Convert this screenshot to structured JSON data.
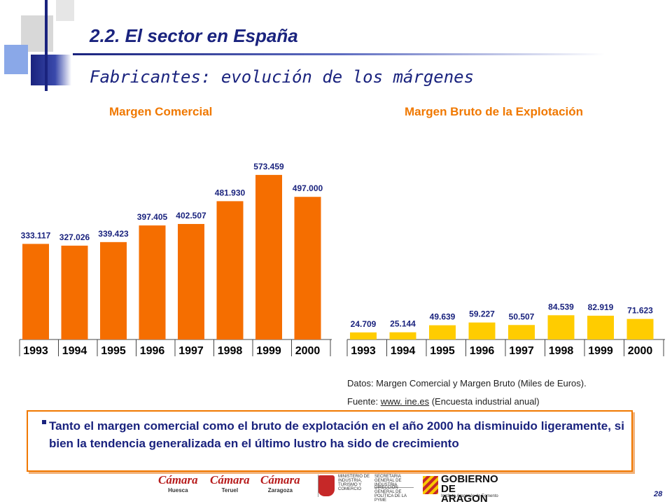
{
  "header": {
    "title": "2.2. El sector en España",
    "subtitle": "Fabricantes: evolución de los márgenes"
  },
  "chart_data": [
    {
      "type": "bar",
      "title": "Margen Comercial",
      "categories": [
        "1993",
        "1994",
        "1995",
        "1996",
        "1997",
        "1998",
        "1999",
        "2000"
      ],
      "values": [
        333117,
        327026,
        339423,
        397405,
        402507,
        481930,
        573459,
        497000
      ],
      "value_labels": [
        "333.117",
        "327.026",
        "339.423",
        "397.405",
        "402.507",
        "481.930",
        "573.459",
        "497.000"
      ],
      "ylim": [
        0,
        600000
      ],
      "bar_color": "#f56e00",
      "label_color": "#1a237e",
      "grid": false
    },
    {
      "type": "bar",
      "title": "Margen Bruto de la Explotación",
      "categories": [
        "1993",
        "1994",
        "1995",
        "1996",
        "1997",
        "1998",
        "1999",
        "2000"
      ],
      "values": [
        24709,
        25144,
        49639,
        59227,
        50507,
        84539,
        82919,
        71623
      ],
      "value_labels": [
        "24.709",
        "25.144",
        "49.639",
        "59.227",
        "50.507",
        "84.539",
        "82.919",
        "71.623"
      ],
      "ylim": [
        0,
        600000
      ],
      "bar_color": "#ffcc00",
      "label_color": "#1a237e",
      "grid": false
    }
  ],
  "notes": {
    "datos": "Datos: Margen Comercial y Margen Bruto (Miles de Euros).",
    "fuente_prefix": "Fuente:",
    "fuente_link": "www. ine.es",
    "fuente_suffix": "(Encuesta industrial anual)"
  },
  "summary": {
    "text": "Tanto el margen comercial como el bruto de explotación en el año 2000 ha disminuido ligeramente, si bien la tendencia generalizada en el último lustro ha sido de crecimiento"
  },
  "footer": {
    "logos": [
      {
        "name": "Cámara",
        "sub": "Huesca"
      },
      {
        "name": "Cámara",
        "sub": "Teruel"
      },
      {
        "name": "Cámara",
        "sub": "Zaragoza"
      }
    ],
    "ministry": "MINISTERIO DE INDUSTRIA, TURISMO Y COMERCIO",
    "secretaria": "SECRETARIA GENERAL DE INDUSTRIA",
    "direccion": "DIRECCIÓN GENERAL DE POLÍTICA DE LA PYME",
    "gobierno": "GOBIERNO DE ARAGON",
    "instituto": "Instituto Aragonés de Fomento",
    "page_number": "28"
  }
}
